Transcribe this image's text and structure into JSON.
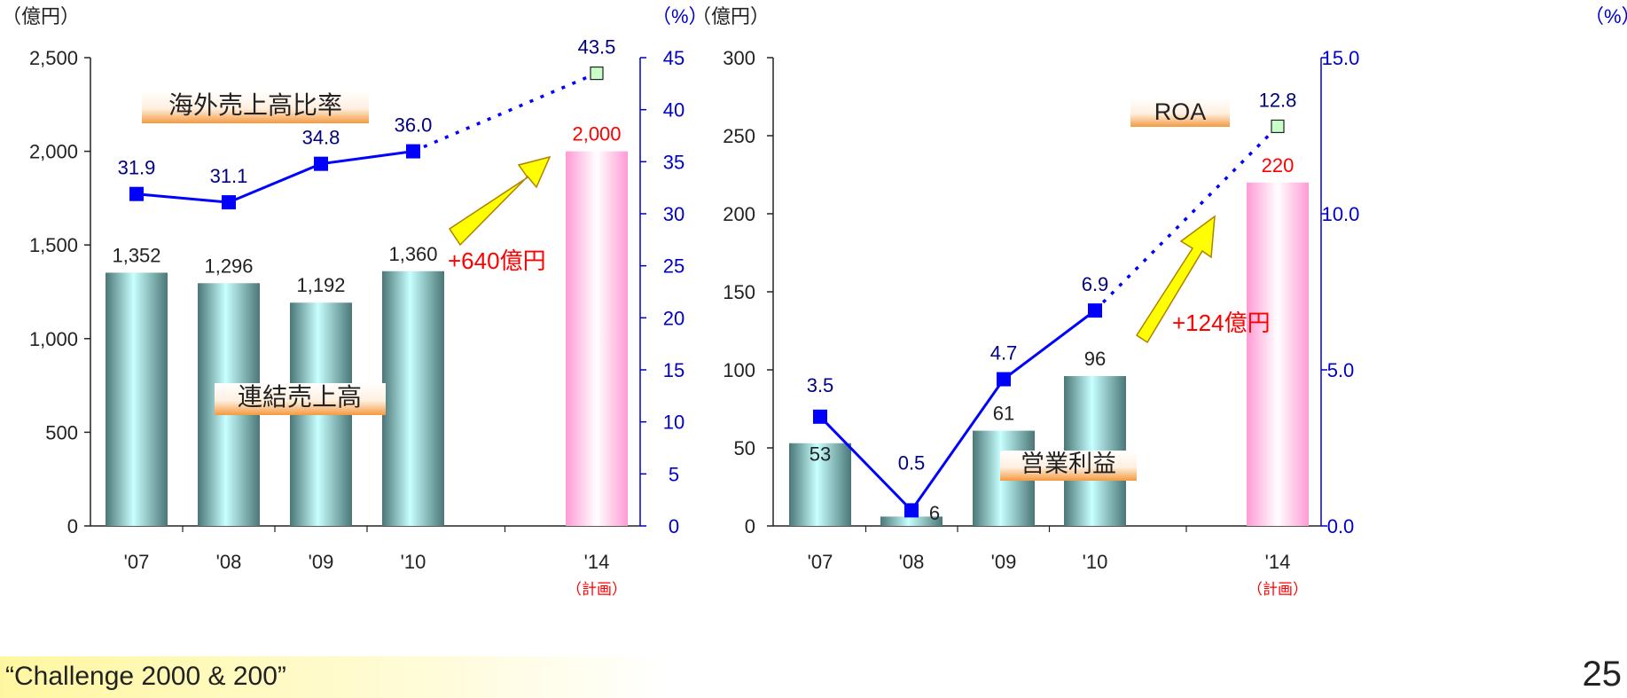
{
  "footer_text": "“Challenge 2000 & 200”",
  "page_number": "25",
  "chart_data": [
    {
      "type": "bar",
      "categories": [
        "'07",
        "'08",
        "'09",
        "'10",
        "'14"
      ],
      "category_sublabels": [
        "",
        "",
        "",
        "",
        "（計画）"
      ],
      "left_unit": "（億円）",
      "right_unit": "（%）",
      "left_ylim": [
        0,
        2500
      ],
      "left_ticks": [
        0,
        500,
        1000,
        1500,
        2000,
        2500
      ],
      "left_tick_labels": [
        "0",
        "500",
        "1,000",
        "1,500",
        "2,000",
        "2,500"
      ],
      "right_ylim": [
        0,
        45
      ],
      "right_ticks": [
        0,
        5,
        10,
        15,
        20,
        25,
        30,
        35,
        40,
        45
      ],
      "right_tick_labels": [
        "0",
        "5",
        "10",
        "15",
        "20",
        "25",
        "30",
        "35",
        "40",
        "45"
      ],
      "bars": {
        "name": "連結売上高",
        "values": [
          1352,
          1296,
          1192,
          1360,
          2000
        ],
        "labels": [
          "1,352",
          "1,296",
          "1,192",
          "1,360",
          "2,000"
        ],
        "label_colors": [
          "#222222",
          "#222222",
          "#222222",
          "#222222",
          "#ff0000"
        ],
        "styles": [
          "actual",
          "actual",
          "actual",
          "actual",
          "plan"
        ]
      },
      "line": {
        "name": "海外売上高比率",
        "values": [
          31.9,
          31.1,
          34.8,
          36.0,
          43.5
        ],
        "labels": [
          "31.9",
          "31.1",
          "34.8",
          "36.0",
          "43.5"
        ],
        "dashed_from_index": 3
      },
      "annotation": "+640億円",
      "colors": {
        "line": "#0000ff",
        "line_label": "#000080",
        "right_axis": "#0000cc",
        "plan_label": "#ff0000",
        "annotation": "#ff0000"
      }
    },
    {
      "type": "bar",
      "categories": [
        "'07",
        "'08",
        "'09",
        "'10",
        "'14"
      ],
      "category_sublabels": [
        "",
        "",
        "",
        "",
        "（計画）"
      ],
      "left_unit": "（億円）",
      "right_unit": "（%）",
      "left_ylim": [
        0,
        300
      ],
      "left_ticks": [
        0,
        50,
        100,
        150,
        200,
        250,
        300
      ],
      "left_tick_labels": [
        "0",
        "50",
        "100",
        "150",
        "200",
        "250",
        "300"
      ],
      "right_ylim": [
        0,
        15
      ],
      "right_ticks": [
        0,
        5,
        10,
        15
      ],
      "right_tick_labels": [
        "0.0",
        "5.0",
        "10.0",
        "15.0"
      ],
      "bars": {
        "name": "営業利益",
        "values": [
          53,
          6,
          61,
          96,
          220
        ],
        "labels": [
          "53",
          "6",
          "61",
          "96",
          "220"
        ],
        "label_colors": [
          "#222222",
          "#222222",
          "#222222",
          "#222222",
          "#ff0000"
        ],
        "styles": [
          "actual",
          "actual",
          "actual",
          "actual",
          "plan"
        ]
      },
      "line": {
        "name": "ROA",
        "values": [
          3.5,
          0.5,
          4.7,
          6.9,
          12.8
        ],
        "labels": [
          "3.5",
          "0.5",
          "4.7",
          "6.9",
          "12.8"
        ],
        "dashed_from_index": 3
      },
      "annotation": "+124億円",
      "colors": {
        "line": "#0000ff",
        "line_label": "#000080",
        "right_axis": "#0000cc",
        "plan_label": "#ff0000",
        "annotation": "#ff0000"
      }
    }
  ]
}
